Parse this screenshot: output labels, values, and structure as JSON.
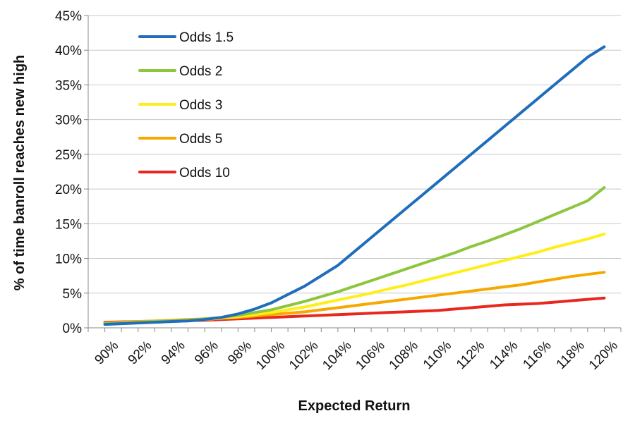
{
  "chart_data": {
    "type": "line",
    "title": "",
    "xlabel": "Expected Return",
    "ylabel": "% of time banroll reaches new high",
    "x": [
      90,
      91,
      92,
      93,
      94,
      95,
      96,
      97,
      98,
      99,
      100,
      101,
      102,
      103,
      104,
      105,
      106,
      107,
      108,
      109,
      110,
      111,
      112,
      113,
      114,
      115,
      116,
      117,
      118,
      119,
      120
    ],
    "x_tick_labels": [
      "90%",
      "92%",
      "94%",
      "96%",
      "98%",
      "100%",
      "102%",
      "104%",
      "106%",
      "108%",
      "110%",
      "112%",
      "114%",
      "116%",
      "118%",
      "120%"
    ],
    "y_tick_labels": [
      "0%",
      "5%",
      "10%",
      "15%",
      "20%",
      "25%",
      "30%",
      "35%",
      "40%",
      "45%"
    ],
    "xlim": [
      89,
      121
    ],
    "ylim": [
      0,
      45
    ],
    "grid": "horizontal",
    "legend_position": "top-left",
    "series": [
      {
        "name": "Odds 1.5",
        "color": "#1f6dbb",
        "values": [
          0.5,
          0.6,
          0.7,
          0.8,
          0.9,
          1.0,
          1.2,
          1.5,
          2.0,
          2.7,
          3.6,
          4.8,
          6.0,
          7.5,
          9.0,
          11.0,
          13.0,
          15.0,
          17.0,
          19.0,
          21.0,
          23.0,
          25.0,
          27.0,
          29.0,
          31.0,
          33.0,
          35.0,
          37.0,
          39.0,
          40.5
        ]
      },
      {
        "name": "Odds 2",
        "color": "#8cc63f",
        "values": [
          0.6,
          0.7,
          0.8,
          0.9,
          1.0,
          1.1,
          1.3,
          1.5,
          1.8,
          2.2,
          2.6,
          3.2,
          3.8,
          4.5,
          5.2,
          6.0,
          6.8,
          7.6,
          8.4,
          9.2,
          10.0,
          10.8,
          11.7,
          12.5,
          13.4,
          14.3,
          15.3,
          16.3,
          17.3,
          18.3,
          20.2
        ]
      },
      {
        "name": "Odds 3",
        "color": "#ffee1a",
        "values": [
          0.6,
          0.7,
          0.8,
          0.9,
          1.0,
          1.1,
          1.2,
          1.4,
          1.6,
          1.9,
          2.2,
          2.6,
          3.0,
          3.5,
          4.0,
          4.5,
          5.0,
          5.6,
          6.1,
          6.7,
          7.3,
          7.9,
          8.5,
          9.1,
          9.7,
          10.3,
          10.9,
          11.6,
          12.2,
          12.8,
          13.5
        ]
      },
      {
        "name": "Odds 5",
        "color": "#f5a800",
        "values": [
          0.7,
          0.8,
          0.9,
          1.0,
          1.1,
          1.2,
          1.3,
          1.4,
          1.5,
          1.7,
          1.9,
          2.1,
          2.3,
          2.6,
          2.9,
          3.2,
          3.5,
          3.8,
          4.1,
          4.4,
          4.7,
          5.0,
          5.3,
          5.6,
          5.9,
          6.2,
          6.6,
          7.0,
          7.4,
          7.7,
          8.0
        ]
      },
      {
        "name": "Odds 10",
        "color": "#e8281e",
        "values": [
          0.8,
          0.85,
          0.9,
          0.95,
          1.0,
          1.05,
          1.1,
          1.2,
          1.3,
          1.4,
          1.5,
          1.6,
          1.7,
          1.8,
          1.9,
          2.0,
          2.1,
          2.2,
          2.3,
          2.4,
          2.5,
          2.7,
          2.9,
          3.1,
          3.3,
          3.4,
          3.5,
          3.7,
          3.9,
          4.1,
          4.3
        ]
      }
    ]
  }
}
